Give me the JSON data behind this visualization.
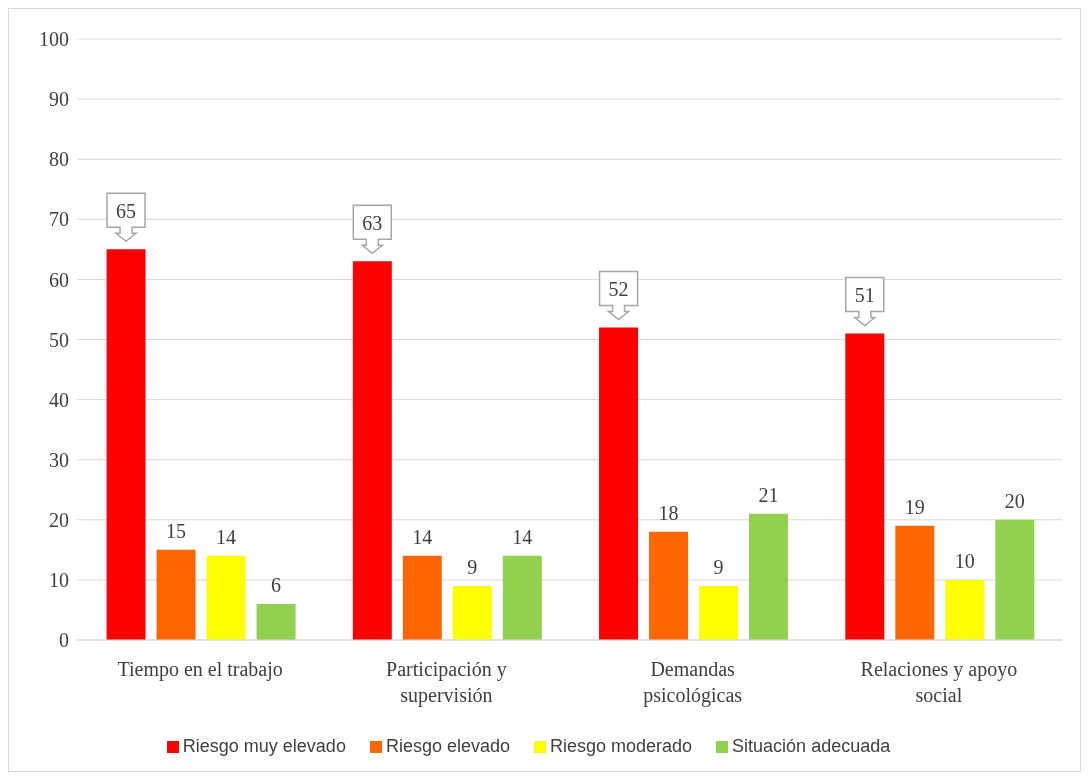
{
  "chart_data": {
    "type": "bar",
    "categories": [
      "Tiempo en el trabajo",
      "Participación y supervisión",
      "Demandas psicológicas",
      "Relaciones y apoyo social"
    ],
    "series": [
      {
        "name": "Riesgo muy elevado",
        "color": "#ff0000",
        "values": [
          65,
          63,
          52,
          51
        ]
      },
      {
        "name": "Riesgo elevado",
        "color": "#ff6600",
        "values": [
          15,
          14,
          18,
          19
        ]
      },
      {
        "name": "Riesgo moderado",
        "color": "#ffff00",
        "values": [
          14,
          9,
          9,
          10
        ]
      },
      {
        "name": "Situación adecuada",
        "color": "#92d050",
        "values": [
          6,
          14,
          21,
          20
        ]
      }
    ],
    "ylim": [
      0,
      100
    ],
    "yticks": [
      0,
      10,
      20,
      30,
      40,
      50,
      60,
      70,
      80,
      90,
      100
    ],
    "grid": "y",
    "legend": "bottom",
    "data_labels": true
  }
}
